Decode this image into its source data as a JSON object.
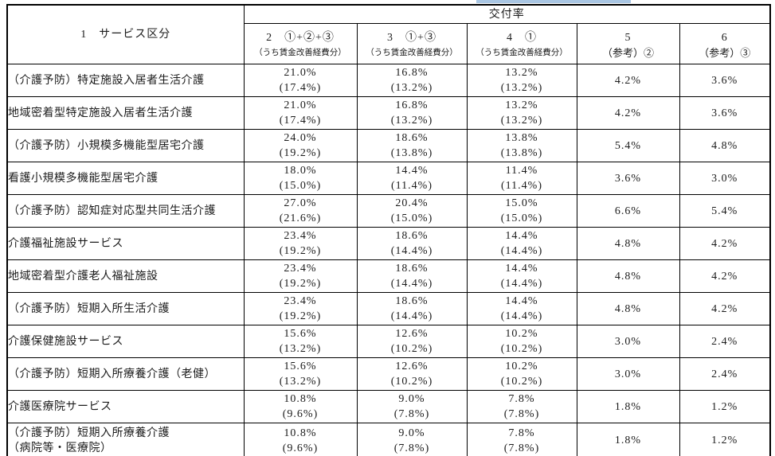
{
  "page": {
    "background_color": "#ffffff",
    "highlight_bar_color": "#a9c6e3"
  },
  "table": {
    "service_column_header": "1　サービス区分",
    "group_header": "交付率",
    "columns": [
      {
        "label": "2　①+②+③",
        "sub": "（うち賃金改善経費分）",
        "ref": false
      },
      {
        "label": "3　①+③",
        "sub": "（うち賃金改善経費分）",
        "ref": false
      },
      {
        "label": "4　①",
        "sub": "（うち賃金改善経費分）",
        "ref": false
      },
      {
        "label": "5",
        "sub": "（参考）②",
        "ref": true
      },
      {
        "label": "6",
        "sub": "（参考）③",
        "ref": true
      }
    ],
    "rows": [
      {
        "service": [
          "（介護予防）特定施設入居者生活介護"
        ],
        "c2": "21.0%",
        "c2p": "(17.4%)",
        "c3": "16.8%",
        "c3p": "(13.2%)",
        "c4": "13.2%",
        "c4p": "(13.2%)",
        "c5": "4.2%",
        "c6": "3.6%"
      },
      {
        "service": [
          "地域密着型特定施設入居者生活介護"
        ],
        "c2": "21.0%",
        "c2p": "(17.4%)",
        "c3": "16.8%",
        "c3p": "(13.2%)",
        "c4": "13.2%",
        "c4p": "(13.2%)",
        "c5": "4.2%",
        "c6": "3.6%"
      },
      {
        "service": [
          "（介護予防）小規模多機能型居宅介護"
        ],
        "c2": "24.0%",
        "c2p": "(19.2%)",
        "c3": "18.6%",
        "c3p": "(13.8%)",
        "c4": "13.8%",
        "c4p": "(13.8%)",
        "c5": "5.4%",
        "c6": "4.8%"
      },
      {
        "service": [
          "看護小規模多機能型居宅介護"
        ],
        "c2": "18.0%",
        "c2p": "(15.0%)",
        "c3": "14.4%",
        "c3p": "(11.4%)",
        "c4": "11.4%",
        "c4p": "(11.4%)",
        "c5": "3.6%",
        "c6": "3.0%"
      },
      {
        "service": [
          "（介護予防）認知症対応型共同生活介護"
        ],
        "c2": "27.0%",
        "c2p": "(21.6%)",
        "c3": "20.4%",
        "c3p": "(15.0%)",
        "c4": "15.0%",
        "c4p": "(15.0%)",
        "c5": "6.6%",
        "c6": "5.4%"
      },
      {
        "service": [
          "介護福祉施設サービス"
        ],
        "c2": "23.4%",
        "c2p": "(19.2%)",
        "c3": "18.6%",
        "c3p": "(14.4%)",
        "c4": "14.4%",
        "c4p": "(14.4%)",
        "c5": "4.8%",
        "c6": "4.2%"
      },
      {
        "service": [
          "地域密着型介護老人福祉施設"
        ],
        "c2": "23.4%",
        "c2p": "(19.2%)",
        "c3": "18.6%",
        "c3p": "(14.4%)",
        "c4": "14.4%",
        "c4p": "(14.4%)",
        "c5": "4.8%",
        "c6": "4.2%"
      },
      {
        "service": [
          "（介護予防）短期入所生活介護"
        ],
        "c2": "23.4%",
        "c2p": "(19.2%)",
        "c3": "18.6%",
        "c3p": "(14.4%)",
        "c4": "14.4%",
        "c4p": "(14.4%)",
        "c5": "4.8%",
        "c6": "4.2%"
      },
      {
        "service": [
          "介護保健施設サービス"
        ],
        "c2": "15.6%",
        "c2p": "(13.2%)",
        "c3": "12.6%",
        "c3p": "(10.2%)",
        "c4": "10.2%",
        "c4p": "(10.2%)",
        "c5": "3.0%",
        "c6": "2.4%"
      },
      {
        "service": [
          "（介護予防）短期入所療養介護（老健）"
        ],
        "c2": "15.6%",
        "c2p": "(13.2%)",
        "c3": "12.6%",
        "c3p": "(10.2%)",
        "c4": "10.2%",
        "c4p": "(10.2%)",
        "c5": "3.0%",
        "c6": "2.4%"
      },
      {
        "service": [
          "介護医療院サービス"
        ],
        "c2": "10.8%",
        "c2p": "(9.6%)",
        "c3": "9.0%",
        "c3p": "(7.8%)",
        "c4": "7.8%",
        "c4p": "(7.8%)",
        "c5": "1.8%",
        "c6": "1.2%"
      },
      {
        "service": [
          "（介護予防）短期入所療養介護",
          "（病院等・医療院）"
        ],
        "c2": "10.8%",
        "c2p": "(9.6%)",
        "c3": "9.0%",
        "c3p": "(7.8%)",
        "c4": "7.8%",
        "c4p": "(7.8%)",
        "c5": "1.8%",
        "c6": "1.2%"
      }
    ]
  }
}
